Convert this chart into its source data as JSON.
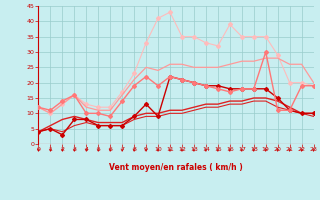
{
  "x": [
    0,
    1,
    2,
    3,
    4,
    5,
    6,
    7,
    8,
    9,
    10,
    11,
    12,
    13,
    14,
    15,
    16,
    17,
    18,
    19,
    20,
    21,
    22,
    23
  ],
  "lines": [
    {
      "y": [
        4,
        5,
        4,
        6,
        7,
        6,
        6,
        6,
        8,
        9,
        9,
        10,
        10,
        11,
        12,
        12,
        13,
        13,
        14,
        14,
        12,
        11,
        10,
        9
      ],
      "color": "#dd2222",
      "lw": 0.8,
      "marker": null,
      "markersize": 0,
      "alpha": 1.0
    },
    {
      "y": [
        4,
        6,
        8,
        9,
        8,
        7,
        7,
        7,
        9,
        10,
        10,
        11,
        11,
        12,
        13,
        13,
        14,
        14,
        15,
        15,
        14,
        12,
        10,
        10
      ],
      "color": "#dd2222",
      "lw": 1.0,
      "marker": null,
      "markersize": 0,
      "alpha": 1.0
    },
    {
      "y": [
        4,
        5,
        3,
        8,
        8,
        6,
        6,
        6,
        9,
        13,
        9,
        22,
        21,
        20,
        19,
        19,
        18,
        18,
        18,
        18,
        15,
        11,
        10,
        10
      ],
      "color": "#cc0000",
      "lw": 1.0,
      "marker": "D",
      "markersize": 2,
      "alpha": 1.0
    },
    {
      "y": [
        12,
        10,
        13,
        16,
        13,
        12,
        12,
        17,
        23,
        33,
        41,
        43,
        35,
        35,
        33,
        32,
        39,
        35,
        35,
        35,
        29,
        20,
        20,
        19
      ],
      "color": "#ffbbbb",
      "lw": 0.8,
      "marker": "D",
      "markersize": 2,
      "alpha": 1.0
    },
    {
      "y": [
        12,
        10,
        13,
        16,
        12,
        11,
        11,
        16,
        21,
        25,
        24,
        26,
        26,
        25,
        25,
        25,
        26,
        27,
        27,
        28,
        28,
        26,
        26,
        20
      ],
      "color": "#ff9999",
      "lw": 0.9,
      "marker": null,
      "markersize": 0,
      "alpha": 1.0
    },
    {
      "y": [
        12,
        11,
        14,
        16,
        10,
        10,
        9,
        14,
        19,
        22,
        19,
        22,
        21,
        20,
        19,
        18,
        17,
        18,
        18,
        30,
        11,
        11,
        19,
        19
      ],
      "color": "#ff7777",
      "lw": 1.0,
      "marker": "D",
      "markersize": 2,
      "alpha": 1.0
    }
  ],
  "xlabel": "Vent moyen/en rafales ( km/h )",
  "xlim": [
    0,
    23
  ],
  "ylim": [
    0,
    45
  ],
  "yticks": [
    0,
    5,
    10,
    15,
    20,
    25,
    30,
    35,
    40,
    45
  ],
  "xticks": [
    0,
    1,
    2,
    3,
    4,
    5,
    6,
    7,
    8,
    9,
    10,
    11,
    12,
    13,
    14,
    15,
    16,
    17,
    18,
    19,
    20,
    21,
    22,
    23
  ],
  "bg_color": "#c8eef0",
  "grid_color": "#99cccc",
  "tick_color": "#cc0000",
  "label_color": "#cc0000"
}
